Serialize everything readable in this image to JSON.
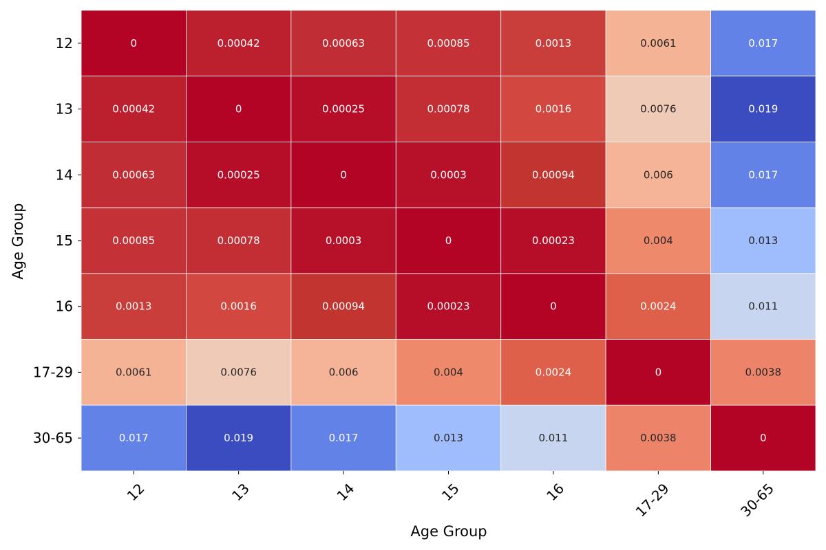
{
  "chart_data": {
    "type": "heatmap",
    "title": "",
    "xlabel": "Age Group",
    "ylabel": "Age Group",
    "x_categories": [
      "12",
      "13",
      "14",
      "15",
      "16",
      "17-29",
      "30-65"
    ],
    "y_categories": [
      "12",
      "13",
      "14",
      "15",
      "16",
      "17-29",
      "30-65"
    ],
    "values": [
      [
        0,
        0.00042,
        0.00063,
        0.00085,
        0.0013,
        0.0061,
        0.017
      ],
      [
        0.00042,
        0,
        0.00025,
        0.00078,
        0.0016,
        0.0076,
        0.019
      ],
      [
        0.00063,
        0.00025,
        0,
        0.0003,
        0.00094,
        0.006,
        0.017
      ],
      [
        0.00085,
        0.00078,
        0.0003,
        0,
        0.00023,
        0.004,
        0.013
      ],
      [
        0.0013,
        0.0016,
        0.00094,
        0.00023,
        0,
        0.0024,
        0.011
      ],
      [
        0.0061,
        0.0076,
        0.006,
        0.004,
        0.0024,
        0,
        0.0038
      ],
      [
        0.017,
        0.019,
        0.017,
        0.013,
        0.011,
        0.0038,
        0
      ]
    ],
    "value_labels": [
      [
        "0",
        "0.00042",
        "0.00063",
        "0.00085",
        "0.0013",
        "0.0061",
        "0.017"
      ],
      [
        "0.00042",
        "0",
        "0.00025",
        "0.00078",
        "0.0016",
        "0.0076",
        "0.019"
      ],
      [
        "0.00063",
        "0.00025",
        "0",
        "0.0003",
        "0.00094",
        "0.006",
        "0.017"
      ],
      [
        "0.00085",
        "0.00078",
        "0.0003",
        "0",
        "0.00023",
        "0.004",
        "0.013"
      ],
      [
        "0.0013",
        "0.0016",
        "0.00094",
        "0.00023",
        "0",
        "0.0024",
        "0.011"
      ],
      [
        "0.0061",
        "0.0076",
        "0.006",
        "0.004",
        "0.0024",
        "0",
        "0.0038"
      ],
      [
        "0.017",
        "0.019",
        "0.017",
        "0.013",
        "0.011",
        "0.0038",
        "0"
      ]
    ],
    "colormap": "coolwarm-reversed",
    "color_range": [
      0,
      0.019
    ],
    "cell_colors": [
      [
        "#b40426",
        "#bc1f2e",
        "#c12d34",
        "#c43136",
        "#c93d3a",
        "#f5b396",
        "#6382e8"
      ],
      [
        "#bc1f2e",
        "#b40426",
        "#b60d29",
        "#c32e35",
        "#d24840",
        "#efcab7",
        "#3b4cc0"
      ],
      [
        "#c12d34",
        "#b60d29",
        "#b40426",
        "#b71129",
        "#c1342f",
        "#f5b397",
        "#6382e8"
      ],
      [
        "#c43136",
        "#c32e35",
        "#b71129",
        "#b40426",
        "#b60d29",
        "#ee896b",
        "#9fbdfd"
      ],
      [
        "#c93d3a",
        "#d24840",
        "#c1342f",
        "#b60d29",
        "#b40426",
        "#de604b",
        "#c8d5f0"
      ],
      [
        "#f5b396",
        "#efcab7",
        "#f5b397",
        "#ee896b",
        "#de604b",
        "#b40426",
        "#ed8469"
      ],
      [
        "#6382e8",
        "#3b4cc0",
        "#6382e8",
        "#9fbdfd",
        "#c8d5f0",
        "#ed8469",
        "#b40426"
      ]
    ],
    "legend": "none",
    "grid": false
  }
}
